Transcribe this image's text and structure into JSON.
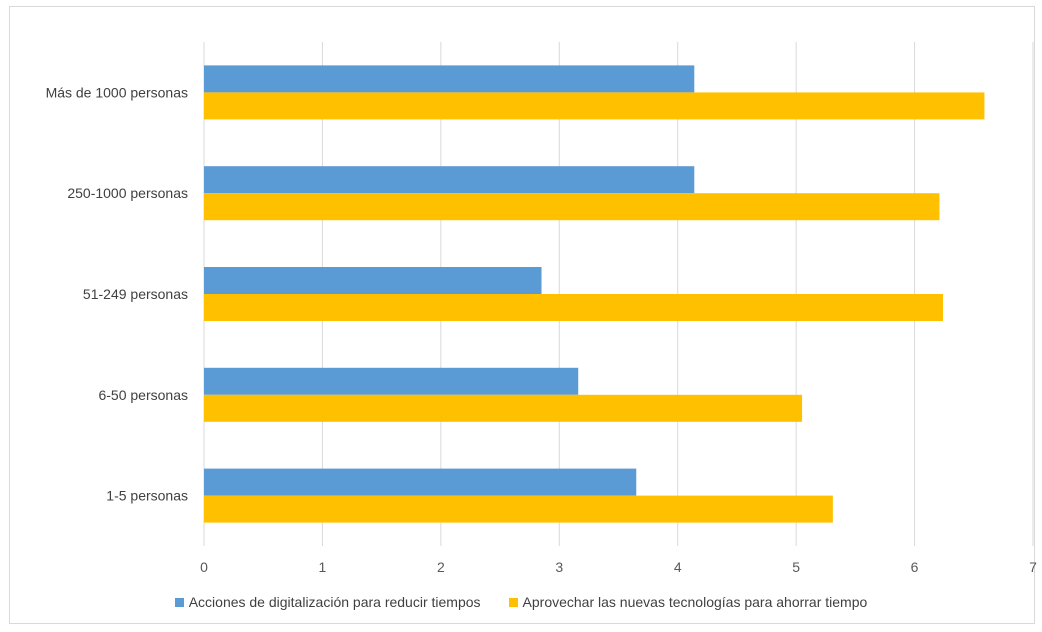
{
  "chart_data": {
    "type": "bar",
    "orientation": "horizontal",
    "categories": [
      "Más de 1000 personas",
      "250-1000 personas",
      "51-249 personas",
      "6-50 personas",
      "1-5 personas"
    ],
    "series": [
      {
        "name": "Acciones de digitalización para reducir tiempos",
        "color": "#5b9bd5",
        "values": [
          4.14,
          4.14,
          2.85,
          3.16,
          3.65
        ]
      },
      {
        "name": "Aprovechar las nuevas tecnologías para ahorrar tiempo",
        "color": "#ffc000",
        "values": [
          6.59,
          6.21,
          6.24,
          5.05,
          5.31
        ]
      }
    ],
    "xlim": [
      0,
      7
    ],
    "xticks": [
      "0",
      "1",
      "2",
      "3",
      "4",
      "5",
      "6",
      "7"
    ],
    "grid": "vertical",
    "legend_position": "bottom"
  }
}
